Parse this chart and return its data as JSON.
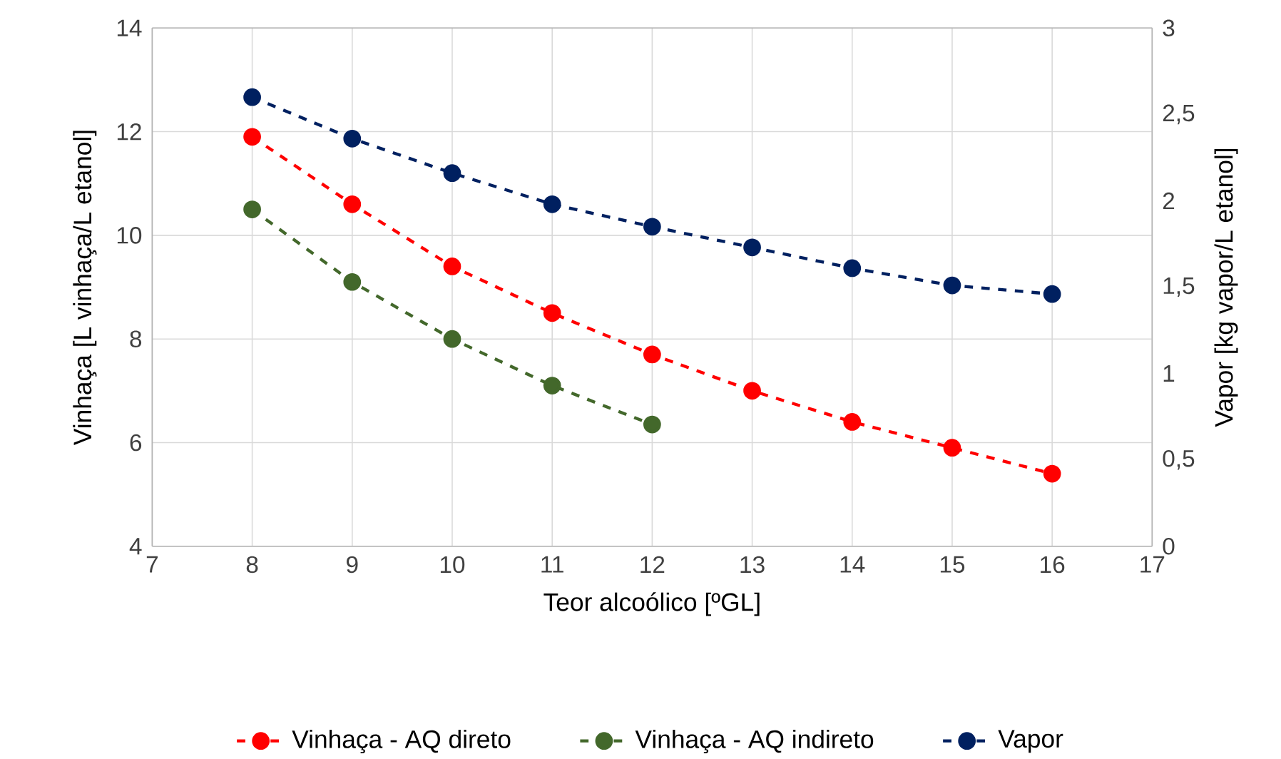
{
  "chart_data": {
    "type": "line",
    "xlabel": "Teor alcoólico [ºGL]",
    "ylabel": "Vinhaça [L vinhaça/L etanol]",
    "y2label": "Vapor [kg vapor/L etanol]",
    "x": [
      8,
      9,
      10,
      11,
      12,
      13,
      14,
      15,
      16
    ],
    "series": [
      {
        "name": "Vinhaça - AQ direto",
        "color": "#ff0000",
        "values": [
          11.9,
          10.6,
          9.4,
          8.5,
          7.7,
          7.0,
          6.4,
          5.9,
          5.4
        ]
      },
      {
        "name": "Vinhaça - AQ indireto",
        "color": "#43682b",
        "values": [
          10.5,
          9.1,
          8.0,
          7.1,
          6.35,
          null,
          null,
          null,
          null
        ]
      },
      {
        "name": "Vapor",
        "color": "#002060",
        "axis": "y2",
        "values": [
          2.6,
          2.36,
          2.16,
          1.98,
          1.85,
          1.73,
          1.61,
          1.51,
          1.46
        ]
      }
    ],
    "xlim": [
      7,
      17
    ],
    "xticks": [
      7,
      8,
      9,
      10,
      11,
      12,
      13,
      14,
      15,
      16,
      17
    ],
    "ylim": [
      4,
      14
    ],
    "yticks": [
      4,
      6,
      8,
      10,
      12,
      14
    ],
    "y2lim": [
      0,
      3
    ],
    "y2ticks": [
      0,
      {
        "value": 0.5,
        "label": "0,5"
      },
      1,
      {
        "value": 1.5,
        "label": "1,5"
      },
      2,
      {
        "value": 2.5,
        "label": "2,5"
      },
      3
    ],
    "grid": true,
    "legend": "bottom",
    "marker": "circle",
    "line_style": "dashed"
  }
}
